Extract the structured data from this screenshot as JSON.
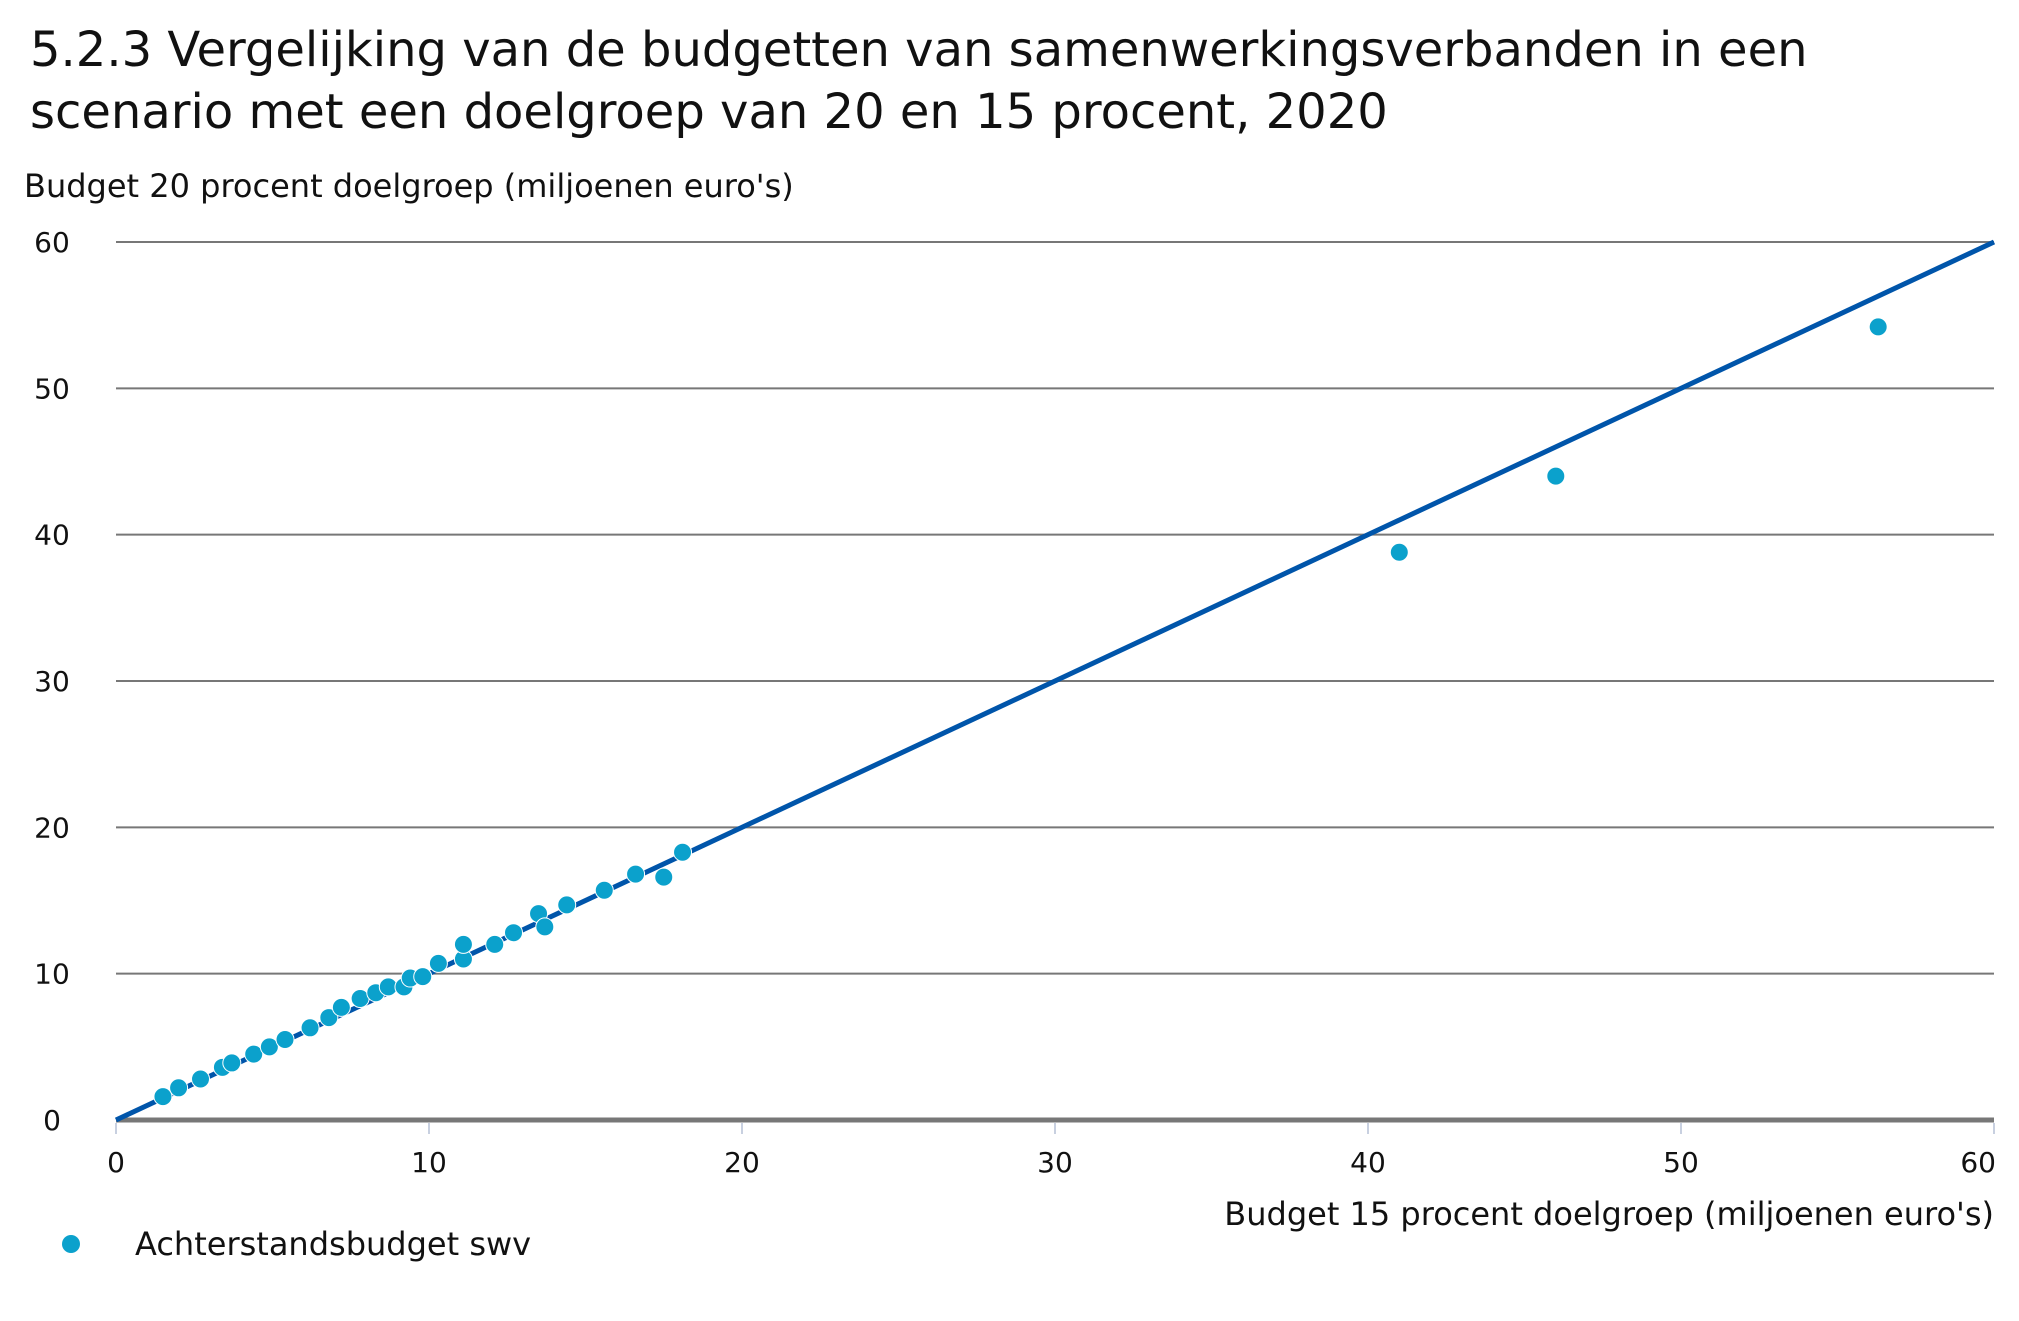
{
  "chart_data": {
    "type": "scatter",
    "title": [
      "5.2.3 Vergelijking van de budgetten van samenwerkingsverbanden in een",
      "scenario met een doelgroep van 20 en 15 procent, 2020"
    ],
    "xlabel": "Budget 15 procent doelgroep (miljoenen euro's)",
    "ylabel": "Budget 20 procent doelgroep (miljoenen euro's)",
    "xlim": [
      0,
      60
    ],
    "ylim": [
      0,
      60
    ],
    "xticks": [
      "0",
      "10",
      "20",
      "30",
      "40",
      "50",
      "60"
    ],
    "yticks": [
      "0",
      "10",
      "20",
      "30",
      "40",
      "50",
      "60"
    ],
    "grid": "horizontal",
    "legend_placement": "bottom-left",
    "series": [
      {
        "name": "Achterstandsbudget swv",
        "color": "#0ba1cc",
        "points": [
          [
            1.5,
            1.6
          ],
          [
            2.0,
            2.2
          ],
          [
            2.7,
            2.8
          ],
          [
            3.4,
            3.6
          ],
          [
            3.7,
            3.9
          ],
          [
            4.4,
            4.5
          ],
          [
            4.9,
            5.0
          ],
          [
            5.4,
            5.5
          ],
          [
            6.2,
            6.3
          ],
          [
            6.8,
            7.0
          ],
          [
            7.2,
            7.7
          ],
          [
            7.8,
            8.3
          ],
          [
            8.3,
            8.7
          ],
          [
            8.7,
            9.1
          ],
          [
            9.2,
            9.1
          ],
          [
            9.4,
            9.7
          ],
          [
            9.8,
            9.8
          ],
          [
            10.3,
            10.7
          ],
          [
            11.1,
            11.0
          ],
          [
            11.1,
            12.0
          ],
          [
            12.1,
            12.0
          ],
          [
            12.7,
            12.8
          ],
          [
            13.5,
            14.1
          ],
          [
            13.7,
            13.2
          ],
          [
            14.4,
            14.7
          ],
          [
            15.6,
            15.7
          ],
          [
            16.6,
            16.8
          ],
          [
            17.5,
            16.6
          ],
          [
            18.1,
            18.3
          ],
          [
            41.0,
            38.8
          ],
          [
            46.0,
            44.0
          ],
          [
            56.3,
            54.2
          ]
        ]
      }
    ],
    "reference_line": {
      "from": [
        0,
        0
      ],
      "to": [
        60,
        60
      ],
      "color": "#0055aa"
    }
  }
}
